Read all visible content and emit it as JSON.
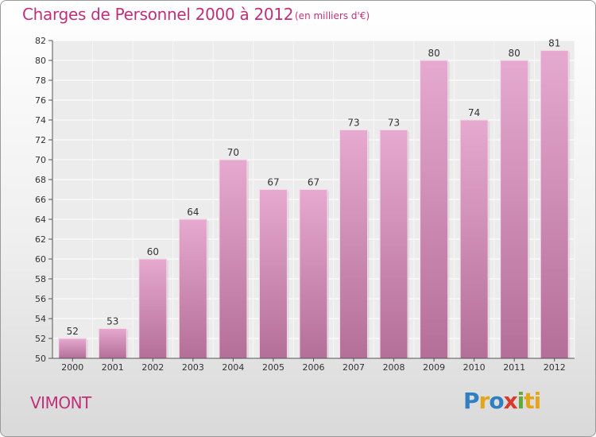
{
  "header": {
    "title": "Charges de Personnel 2000 à 2012",
    "subtitle": "(en milliers d'€)"
  },
  "footer": {
    "city": "VIMONT",
    "logo_letters": [
      "P",
      "r",
      "o",
      "x",
      "i",
      "ti"
    ]
  },
  "colors": {
    "title": "#c0307a",
    "bar_top": "#e6a9cf",
    "bar_bottom": "#b76f98"
  },
  "chart_data": {
    "type": "bar",
    "categories": [
      "2000",
      "2001",
      "2002",
      "2003",
      "2004",
      "2005",
      "2006",
      "2007",
      "2008",
      "2009",
      "2010",
      "2011",
      "2012"
    ],
    "values": [
      52,
      53,
      60,
      64,
      70,
      67,
      67,
      73,
      73,
      80,
      74,
      80,
      81
    ],
    "ylim": [
      50,
      82
    ],
    "yticks": [
      50,
      52,
      54,
      56,
      58,
      60,
      62,
      64,
      66,
      68,
      70,
      72,
      74,
      76,
      78,
      80,
      82
    ],
    "grid": true,
    "legend": "none"
  }
}
